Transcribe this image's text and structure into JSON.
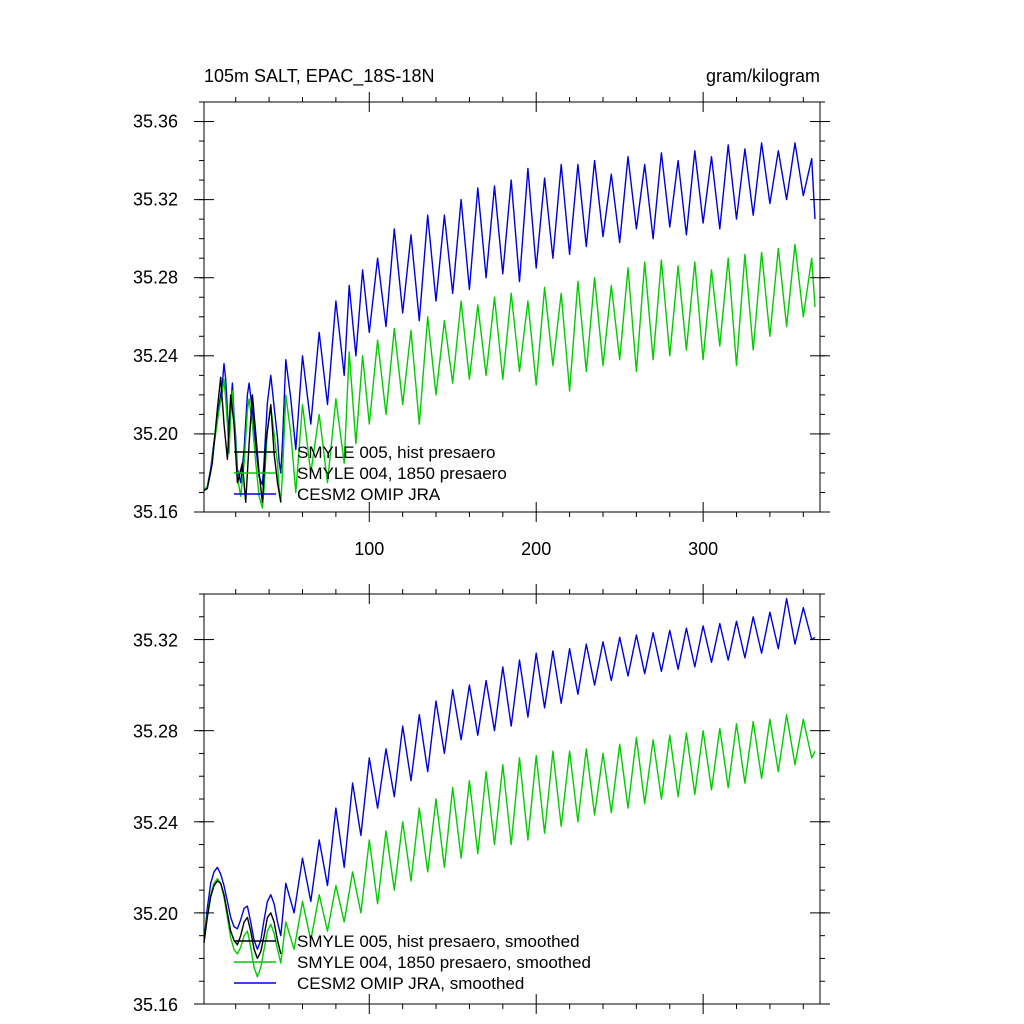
{
  "chart_data": [
    {
      "type": "line",
      "title_left": "105m SALT, EPAC_18S-18N",
      "title_right": "gram/kilogram",
      "xlim": [
        1,
        370
      ],
      "ylim": [
        35.16,
        35.37
      ],
      "xticks": [
        100,
        200,
        300
      ],
      "xtick_labels": [
        "100",
        "200",
        "300"
      ],
      "yticks": [
        35.16,
        35.2,
        35.24,
        35.28,
        35.32,
        35.36
      ],
      "ytick_labels": [
        "35.16",
        "35.20",
        "35.24",
        "35.28",
        "35.32",
        "35.36"
      ],
      "grid": false,
      "legend_position": "bottom-left",
      "series": [
        {
          "name": "SMYLE 005, hist presaero",
          "color": "#000000",
          "x": [
            1,
            3,
            6,
            9,
            11,
            13,
            15,
            17,
            19,
            21,
            24,
            26,
            28,
            30,
            32,
            34,
            36,
            38,
            41,
            43,
            45,
            47
          ],
          "values": [
            35.171,
            35.172,
            35.185,
            35.213,
            35.229,
            35.205,
            35.187,
            35.22,
            35.205,
            35.175,
            35.185,
            35.165,
            35.195,
            35.22,
            35.2,
            35.18,
            35.165,
            35.195,
            35.215,
            35.19,
            35.175,
            35.165
          ]
        },
        {
          "name": "SMYLE 004, 1850 presaero",
          "color": "#00cc00",
          "x": [
            1,
            3,
            5,
            7,
            10,
            12,
            13,
            14,
            15,
            16,
            17,
            18,
            19,
            20,
            21,
            23,
            25,
            26,
            27,
            28,
            30,
            32,
            34,
            36,
            37,
            38,
            39,
            41,
            43,
            45,
            46,
            47,
            48,
            50,
            53,
            56,
            60,
            65,
            70,
            75,
            80,
            85,
            88,
            92,
            96,
            100,
            105,
            110,
            115,
            120,
            125,
            130,
            135,
            140,
            145,
            150,
            155,
            160,
            165,
            170,
            175,
            180,
            185,
            190,
            195,
            200,
            205,
            210,
            215,
            220,
            225,
            230,
            235,
            240,
            245,
            250,
            255,
            260,
            265,
            270,
            275,
            280,
            285,
            290,
            295,
            300,
            305,
            310,
            315,
            320,
            325,
            330,
            335,
            340,
            345,
            350,
            355,
            360,
            365,
            367
          ],
          "values": [
            35.171,
            35.173,
            35.18,
            35.194,
            35.212,
            35.222,
            35.228,
            35.218,
            35.205,
            35.19,
            35.21,
            35.222,
            35.208,
            35.195,
            35.178,
            35.168,
            35.185,
            35.198,
            35.212,
            35.218,
            35.205,
            35.185,
            35.168,
            35.162,
            35.172,
            35.188,
            35.202,
            35.214,
            35.2,
            35.185,
            35.172,
            35.165,
            35.18,
            35.22,
            35.2,
            35.17,
            35.215,
            35.18,
            35.21,
            35.175,
            35.218,
            35.185,
            35.242,
            35.195,
            35.24,
            35.205,
            35.248,
            35.21,
            35.254,
            35.215,
            35.253,
            35.205,
            35.26,
            35.22,
            35.258,
            35.226,
            35.268,
            35.228,
            35.266,
            35.23,
            35.27,
            35.228,
            35.272,
            35.232,
            35.268,
            35.225,
            35.275,
            35.235,
            35.272,
            35.222,
            35.278,
            35.232,
            35.28,
            35.235,
            35.276,
            35.238,
            35.285,
            35.232,
            35.288,
            35.238,
            35.289,
            35.24,
            35.286,
            35.243,
            35.288,
            35.238,
            35.284,
            35.245,
            35.29,
            35.235,
            35.292,
            35.243,
            35.293,
            35.25,
            35.295,
            35.255,
            35.297,
            35.26,
            35.29,
            35.265
          ]
        },
        {
          "name": "CESM2 OMIP JRA",
          "color": "#0000dd",
          "x": [
            1,
            3,
            5,
            7,
            10,
            12,
            13,
            14,
            15,
            16,
            17,
            18,
            19,
            20,
            21,
            23,
            25,
            26,
            27,
            28,
            30,
            32,
            34,
            36,
            37,
            38,
            39,
            41,
            43,
            45,
            46,
            47,
            48,
            50,
            53,
            56,
            60,
            65,
            70,
            75,
            80,
            85,
            88,
            92,
            96,
            100,
            105,
            110,
            115,
            120,
            125,
            130,
            135,
            140,
            145,
            150,
            155,
            160,
            165,
            170,
            175,
            180,
            185,
            190,
            195,
            200,
            205,
            210,
            215,
            220,
            225,
            230,
            235,
            240,
            245,
            250,
            255,
            260,
            265,
            270,
            275,
            280,
            285,
            290,
            295,
            300,
            305,
            310,
            315,
            320,
            325,
            330,
            335,
            340,
            345,
            350,
            355,
            360,
            365,
            367
          ],
          "values": [
            35.171,
            35.173,
            35.182,
            35.196,
            35.214,
            35.226,
            35.236,
            35.228,
            35.212,
            35.196,
            35.214,
            35.226,
            35.21,
            35.198,
            35.182,
            35.175,
            35.192,
            35.206,
            35.22,
            35.226,
            35.212,
            35.194,
            35.178,
            35.174,
            35.186,
            35.202,
            35.216,
            35.23,
            35.214,
            35.198,
            35.186,
            35.18,
            35.196,
            35.238,
            35.218,
            35.192,
            35.24,
            35.205,
            35.252,
            35.215,
            35.268,
            35.23,
            35.276,
            35.24,
            35.284,
            35.252,
            35.29,
            35.255,
            35.305,
            35.262,
            35.302,
            35.258,
            35.312,
            35.268,
            35.312,
            35.272,
            35.32,
            35.274,
            35.326,
            35.28,
            35.327,
            35.282,
            35.33,
            35.278,
            35.336,
            35.285,
            35.331,
            35.29,
            35.338,
            35.292,
            35.338,
            35.296,
            35.34,
            35.301,
            35.333,
            35.298,
            35.342,
            35.305,
            35.338,
            35.3,
            35.344,
            35.306,
            35.34,
            35.302,
            35.345,
            35.308,
            35.342,
            35.305,
            35.348,
            35.31,
            35.346,
            35.312,
            35.349,
            35.318,
            35.345,
            35.32,
            35.349,
            35.322,
            35.341,
            35.31
          ]
        }
      ]
    },
    {
      "type": "line",
      "xlim": [
        1,
        370
      ],
      "ylim": [
        35.16,
        35.34
      ],
      "xticks": [
        100,
        200,
        300
      ],
      "yticks": [
        35.16,
        35.2,
        35.24,
        35.28,
        35.32
      ],
      "ytick_labels": [
        "35.16",
        "35.20",
        "35.24",
        "35.28",
        "35.32"
      ],
      "grid": false,
      "legend_position": "bottom-left",
      "series": [
        {
          "name": "SMYLE 005, hist presaero, smoothed",
          "color": "#000000",
          "x": [
            1,
            3,
            5,
            7,
            9,
            11,
            13,
            15,
            17,
            19,
            21,
            23,
            25,
            27,
            29,
            31,
            33,
            35,
            37,
            39,
            41,
            43,
            45,
            47
          ],
          "values": [
            35.187,
            35.198,
            35.207,
            35.212,
            35.214,
            35.213,
            35.208,
            35.2,
            35.192,
            35.188,
            35.186,
            35.19,
            35.196,
            35.198,
            35.192,
            35.184,
            35.18,
            35.183,
            35.19,
            35.198,
            35.2,
            35.196,
            35.188,
            35.182
          ]
        },
        {
          "name": "SMYLE 004, 1850 presaero, smoothed",
          "color": "#00cc00",
          "x": [
            1,
            3,
            5,
            7,
            9,
            11,
            13,
            15,
            17,
            19,
            21,
            23,
            25,
            27,
            29,
            31,
            33,
            35,
            37,
            39,
            41,
            43,
            45,
            47,
            50,
            55,
            60,
            65,
            70,
            75,
            80,
            85,
            90,
            95,
            100,
            105,
            110,
            115,
            120,
            125,
            130,
            135,
            140,
            145,
            150,
            155,
            160,
            165,
            170,
            175,
            180,
            185,
            190,
            195,
            200,
            205,
            210,
            215,
            220,
            225,
            230,
            235,
            240,
            245,
            250,
            255,
            260,
            265,
            270,
            275,
            280,
            285,
            290,
            295,
            300,
            305,
            310,
            315,
            320,
            325,
            330,
            335,
            340,
            345,
            350,
            355,
            360,
            365,
            367
          ],
          "values": [
            35.187,
            35.199,
            35.208,
            35.213,
            35.215,
            35.213,
            35.207,
            35.198,
            35.189,
            35.184,
            35.182,
            35.185,
            35.19,
            35.192,
            35.185,
            35.176,
            35.172,
            35.176,
            35.184,
            35.192,
            35.195,
            35.191,
            35.184,
            35.178,
            35.196,
            35.184,
            35.205,
            35.188,
            35.208,
            35.192,
            35.212,
            35.196,
            35.218,
            35.2,
            35.232,
            35.204,
            35.236,
            35.21,
            35.24,
            35.214,
            35.246,
            35.218,
            35.25,
            35.22,
            35.255,
            35.224,
            35.258,
            35.226,
            35.262,
            35.23,
            35.265,
            35.23,
            35.268,
            35.232,
            35.269,
            35.235,
            35.271,
            35.238,
            35.271,
            35.24,
            35.272,
            35.243,
            35.27,
            35.244,
            35.274,
            35.246,
            35.277,
            35.248,
            35.276,
            35.25,
            35.278,
            35.251,
            35.279,
            35.252,
            35.28,
            35.254,
            35.281,
            35.255,
            35.283,
            35.257,
            35.284,
            35.259,
            35.285,
            35.262,
            35.287,
            35.265,
            35.285,
            35.268,
            35.271
          ]
        },
        {
          "name": "CESM2 OMIP JRA, smoothed",
          "color": "#0000dd",
          "x": [
            1,
            3,
            5,
            7,
            9,
            11,
            13,
            15,
            17,
            19,
            21,
            23,
            25,
            27,
            29,
            31,
            33,
            35,
            37,
            39,
            41,
            43,
            45,
            47,
            50,
            55,
            60,
            65,
            70,
            75,
            80,
            85,
            90,
            95,
            100,
            105,
            110,
            115,
            120,
            125,
            130,
            135,
            140,
            145,
            150,
            155,
            160,
            165,
            170,
            175,
            180,
            185,
            190,
            195,
            200,
            205,
            210,
            215,
            220,
            225,
            230,
            235,
            240,
            245,
            250,
            255,
            260,
            265,
            270,
            275,
            280,
            285,
            290,
            295,
            300,
            305,
            310,
            315,
            320,
            325,
            330,
            335,
            340,
            345,
            350,
            355,
            360,
            365,
            367
          ],
          "values": [
            35.187,
            35.202,
            35.213,
            35.218,
            35.22,
            35.217,
            35.212,
            35.205,
            35.198,
            35.194,
            35.193,
            35.197,
            35.202,
            35.203,
            35.196,
            35.188,
            35.184,
            35.188,
            35.197,
            35.205,
            35.208,
            35.204,
            35.196,
            35.19,
            35.213,
            35.2,
            35.224,
            35.205,
            35.232,
            35.212,
            35.246,
            35.22,
            35.257,
            35.234,
            35.268,
            35.246,
            35.272,
            35.251,
            35.282,
            35.258,
            35.287,
            35.262,
            35.293,
            35.27,
            35.298,
            35.276,
            35.3,
            35.278,
            35.302,
            35.28,
            35.308,
            35.282,
            35.311,
            35.286,
            35.314,
            35.29,
            35.315,
            35.292,
            35.316,
            35.296,
            35.318,
            35.3,
            35.319,
            35.302,
            35.321,
            35.304,
            35.322,
            35.305,
            35.323,
            35.306,
            35.324,
            35.307,
            35.325,
            35.308,
            35.326,
            35.31,
            35.327,
            35.311,
            35.328,
            35.312,
            35.33,
            35.314,
            35.332,
            35.316,
            35.338,
            35.318,
            35.334,
            35.32,
            35.321
          ]
        }
      ]
    }
  ]
}
